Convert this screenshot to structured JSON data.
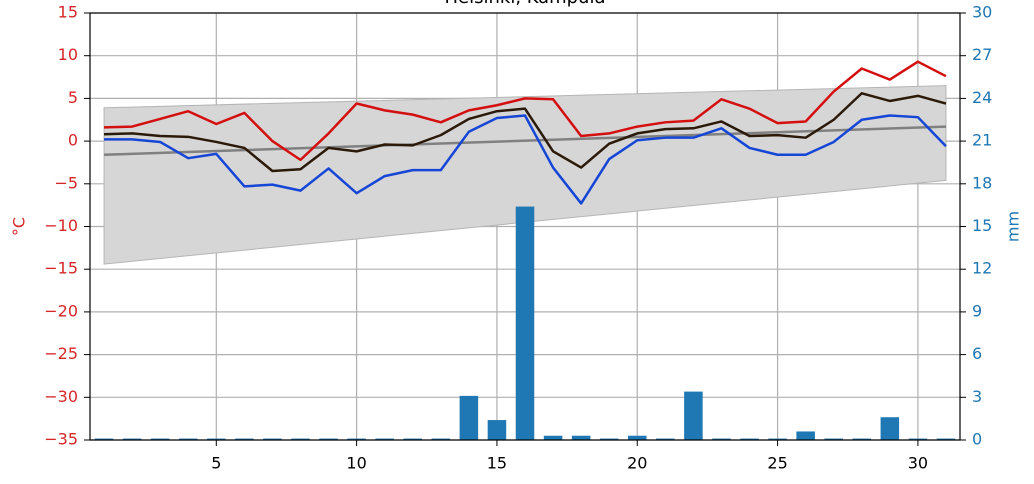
{
  "chart_data": {
    "type": "weather",
    "title": "Helsinki, Kumpula",
    "ylabel": "°C",
    "y2label": "mm",
    "xlim": [
      0.5,
      31.5
    ],
    "xticks": [
      5,
      10,
      15,
      20,
      25,
      30
    ],
    "ylim": [
      -35,
      15
    ],
    "yticks": [
      {
        "value": -35,
        "label": "−35"
      },
      {
        "value": -30,
        "label": "−30"
      },
      {
        "value": -25,
        "label": "−25"
      },
      {
        "value": -20,
        "label": "−20"
      },
      {
        "value": -15,
        "label": "−15"
      },
      {
        "value": -10,
        "label": "−10"
      },
      {
        "value": -5,
        "label": "−5"
      },
      0,
      5,
      10,
      15
    ],
    "y2lim": [
      0,
      30
    ],
    "y2ticks": [
      0,
      3,
      6,
      9,
      12,
      15,
      18,
      21,
      24,
      27,
      30
    ],
    "grid": true,
    "ycolor": "#d62728",
    "y2color": "#1f77b4",
    "x": [
      1,
      2,
      3,
      4,
      5,
      6,
      7,
      8,
      9,
      10,
      11,
      12,
      13,
      14,
      15,
      16,
      17,
      18,
      19,
      20,
      21,
      22,
      23,
      24,
      25,
      26,
      27,
      28,
      29,
      30,
      31
    ],
    "series": [
      {
        "color": "#d40f0f",
        "values": [
          1.6,
          1.7,
          2.6,
          3.5,
          2.0,
          3.3,
          0.0,
          -2.2,
          0.9,
          4.4,
          3.6,
          3.1,
          2.2,
          3.6,
          4.2,
          5.0,
          4.9,
          0.6,
          0.9,
          1.7,
          2.2,
          2.4,
          4.9,
          3.8,
          2.1,
          2.3,
          5.8,
          8.5,
          7.2,
          9.3,
          7.6
        ]
      },
      {
        "color": "#2b1a0a",
        "values": [
          0.8,
          0.9,
          0.6,
          0.5,
          -0.1,
          -0.8,
          -3.5,
          -3.3,
          -0.8,
          -1.2,
          -0.4,
          -0.5,
          0.7,
          2.6,
          3.5,
          3.8,
          -1.2,
          -3.1,
          -0.3,
          0.9,
          1.4,
          1.5,
          2.3,
          0.6,
          0.7,
          0.4,
          2.5,
          5.6,
          4.7,
          5.3,
          4.4
        ]
      },
      {
        "color": "#1646d6",
        "values": [
          0.2,
          0.2,
          -0.1,
          -2.0,
          -1.5,
          -5.3,
          -5.1,
          -5.8,
          -3.2,
          -6.1,
          -4.1,
          -3.4,
          -3.4,
          1.1,
          2.7,
          3.0,
          -3.1,
          -7.3,
          -2.1,
          0.1,
          0.4,
          0.4,
          1.5,
          -0.8,
          -1.6,
          -1.6,
          -0.1,
          2.5,
          3.0,
          2.8,
          -0.6
        ]
      },
      {
        "axis": "y2",
        "color": "#1f77b4",
        "values": [
          0.1,
          0.1,
          0.1,
          0.1,
          0.1,
          0.1,
          0.1,
          0.1,
          0.1,
          0.1,
          0.1,
          0.1,
          0.1,
          3.1,
          1.4,
          16.4,
          0.3,
          0.3,
          0.1,
          0.3,
          0.1,
          3.4,
          0.1,
          0.1,
          0.1,
          0.6,
          0.1,
          0.1,
          1.6,
          0.1,
          0.1
        ]
      }
    ],
    "climate": {
      "x": [
        1,
        31
      ],
      "mean": [
        -1.6,
        1.7
      ],
      "upper": [
        3.9,
        6.5
      ],
      "lower": [
        -14.4,
        -4.6
      ],
      "color": "#808080",
      "band_color": "#d6d6d6"
    }
  }
}
